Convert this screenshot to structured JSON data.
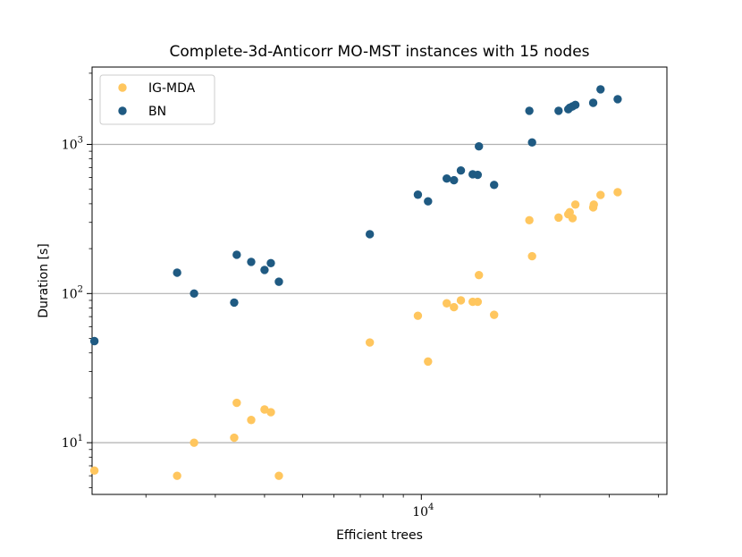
{
  "chart_data": {
    "type": "scatter",
    "title": "Complete-3d-Anticorr MO-MST instances with 15 nodes",
    "xlabel": "Efficient trees",
    "ylabel": "Duration [s]",
    "xscale": "log",
    "yscale": "log",
    "xlim": [
      1460,
      42000
    ],
    "ylim": [
      4.5,
      3300
    ],
    "grid": "y-major",
    "legend_position": "top-left",
    "y_ticks": [
      {
        "value": 10,
        "base": "10",
        "exp": "1"
      },
      {
        "value": 100,
        "base": "10",
        "exp": "2"
      },
      {
        "value": 1000,
        "base": "10",
        "exp": "3"
      }
    ],
    "x_ticks": [
      {
        "value": 10000,
        "base": "10",
        "exp": "4"
      }
    ],
    "x_minor_ticks": [
      2000,
      3000,
      4000,
      5000,
      6000,
      7000,
      8000,
      9000,
      20000,
      30000,
      40000
    ],
    "series": [
      {
        "name": "IG-MDA",
        "color": "#FFC65E",
        "points": [
          {
            "x": 1480,
            "y": 6.5
          },
          {
            "x": 2400,
            "y": 6.0
          },
          {
            "x": 2650,
            "y": 10.0
          },
          {
            "x": 3350,
            "y": 10.8
          },
          {
            "x": 3400,
            "y": 18.5
          },
          {
            "x": 3700,
            "y": 14.2
          },
          {
            "x": 4000,
            "y": 16.7
          },
          {
            "x": 4150,
            "y": 16.0
          },
          {
            "x": 4350,
            "y": 6.0
          },
          {
            "x": 7400,
            "y": 47.0
          },
          {
            "x": 9800,
            "y": 71.0
          },
          {
            "x": 10400,
            "y": 35.0
          },
          {
            "x": 11600,
            "y": 86.0
          },
          {
            "x": 12100,
            "y": 81.0
          },
          {
            "x": 12600,
            "y": 90.0
          },
          {
            "x": 13500,
            "y": 88.0
          },
          {
            "x": 13900,
            "y": 88.0
          },
          {
            "x": 14000,
            "y": 133.0
          },
          {
            "x": 15300,
            "y": 72.0
          },
          {
            "x": 18800,
            "y": 310.0
          },
          {
            "x": 19100,
            "y": 178.0
          },
          {
            "x": 22300,
            "y": 323.0
          },
          {
            "x": 23600,
            "y": 340.0
          },
          {
            "x": 23800,
            "y": 351.0
          },
          {
            "x": 24200,
            "y": 320.0
          },
          {
            "x": 24600,
            "y": 395.0
          },
          {
            "x": 27300,
            "y": 378.0
          },
          {
            "x": 27400,
            "y": 395.0
          },
          {
            "x": 28500,
            "y": 458.0
          },
          {
            "x": 31500,
            "y": 478.0
          }
        ]
      },
      {
        "name": "BN",
        "color": "#1F5A82",
        "points": [
          {
            "x": 1480,
            "y": 48.0
          },
          {
            "x": 2400,
            "y": 138.0
          },
          {
            "x": 2650,
            "y": 100.0
          },
          {
            "x": 3350,
            "y": 87.0
          },
          {
            "x": 3400,
            "y": 182.0
          },
          {
            "x": 3700,
            "y": 163.0
          },
          {
            "x": 4000,
            "y": 144.0
          },
          {
            "x": 4150,
            "y": 160.0
          },
          {
            "x": 4350,
            "y": 120.0
          },
          {
            "x": 7400,
            "y": 250.0
          },
          {
            "x": 9800,
            "y": 460.0
          },
          {
            "x": 10400,
            "y": 415.0
          },
          {
            "x": 11600,
            "y": 590.0
          },
          {
            "x": 12100,
            "y": 575.0
          },
          {
            "x": 12600,
            "y": 668.0
          },
          {
            "x": 13500,
            "y": 630.0
          },
          {
            "x": 13900,
            "y": 625.0
          },
          {
            "x": 14000,
            "y": 970.0
          },
          {
            "x": 15300,
            "y": 535.0
          },
          {
            "x": 18800,
            "y": 1680.0
          },
          {
            "x": 19100,
            "y": 1030.0
          },
          {
            "x": 22300,
            "y": 1680.0
          },
          {
            "x": 23600,
            "y": 1720.0
          },
          {
            "x": 23800,
            "y": 1760.0
          },
          {
            "x": 24200,
            "y": 1800.0
          },
          {
            "x": 24600,
            "y": 1840.0
          },
          {
            "x": 27300,
            "y": 1900.0
          },
          {
            "x": 28500,
            "y": 2340.0
          },
          {
            "x": 31500,
            "y": 2010.0
          }
        ]
      }
    ]
  }
}
